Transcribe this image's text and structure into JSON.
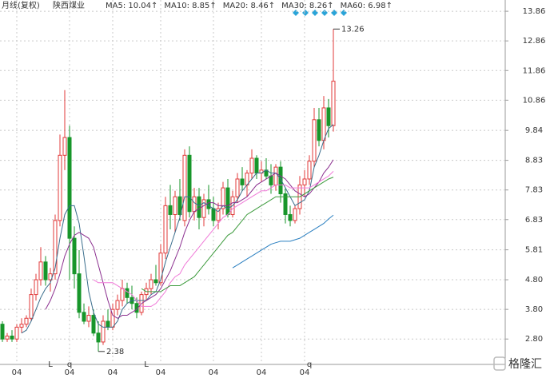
{
  "chart_data": {
    "type": "candlestick",
    "title": "月线(复权)",
    "subtitle": "陕西煤业",
    "watermark": "格隆汇",
    "categories": [
      null,
      null,
      null,
      "04",
      null,
      null,
      null,
      null,
      null,
      null,
      null,
      null,
      null,
      null,
      "04",
      null,
      null,
      null,
      null,
      null,
      null,
      null,
      null,
      "04",
      null,
      null,
      null,
      null,
      null,
      null,
      null,
      null,
      null,
      "04",
      null,
      null,
      null,
      null,
      null,
      null,
      null,
      null,
      null,
      null,
      "04",
      null,
      null,
      null,
      null,
      null,
      null,
      null,
      null,
      null,
      "04",
      null,
      null,
      null,
      null,
      null,
      null,
      null,
      null,
      "04",
      null,
      null,
      null,
      null,
      null,
      null
    ],
    "event_labels": [
      null,
      null,
      null,
      null,
      null,
      null,
      null,
      null,
      null,
      null,
      "L",
      null,
      null,
      null,
      "q",
      null,
      null,
      null,
      null,
      null,
      null,
      null,
      null,
      null,
      null,
      null,
      null,
      null,
      null,
      null,
      "L",
      null,
      null,
      null,
      null,
      null,
      null,
      null,
      null,
      null,
      null,
      null,
      null,
      null,
      null,
      null,
      null,
      null,
      null,
      null,
      null,
      null,
      null,
      null,
      null,
      null,
      null,
      null,
      null,
      null,
      null,
      null,
      null,
      null,
      "q",
      null,
      null,
      null,
      null,
      null
    ],
    "open": [
      3.3,
      2.8,
      2.9,
      2.8,
      3.2,
      3.3,
      3.5,
      4.3,
      4.8,
      5.4,
      4.8,
      5.0,
      6.8,
      9.0,
      9.6,
      6.2,
      5.0,
      3.7,
      3.4,
      3.6,
      3.0,
      2.7,
      3.4,
      3.2,
      3.8,
      4.1,
      4.5,
      4.2,
      4.0,
      3.7,
      4.3,
      4.5,
      4.8,
      4.7,
      5.7,
      7.3,
      7.0,
      7.6,
      6.8,
      9.0,
      7.1,
      7.6,
      6.9,
      7.5,
      7.2,
      6.8,
      7.2,
      7.9,
      7.0,
      7.6,
      8.2,
      8.0,
      8.4,
      8.9,
      8.4,
      8.5,
      8.3,
      8.0,
      8.6,
      7.7,
      7.0,
      6.8,
      7.2,
      8.0,
      8.2,
      8.8,
      10.2,
      9.5,
      10.6,
      10.0
    ],
    "high": [
      3.4,
      3.0,
      3.1,
      3.3,
      3.5,
      3.6,
      4.5,
      5.0,
      5.9,
      5.6,
      5.2,
      7.0,
      9.7,
      11.2,
      10.0,
      6.6,
      5.8,
      4.0,
      3.9,
      3.8,
      3.4,
      3.6,
      3.8,
      4.0,
      4.3,
      4.8,
      4.7,
      4.6,
      4.2,
      4.4,
      4.7,
      5.0,
      5.3,
      6.0,
      7.6,
      8.0,
      7.8,
      8.2,
      9.2,
      9.3,
      7.9,
      7.9,
      7.7,
      8.0,
      7.6,
      7.4,
      8.1,
      8.2,
      7.8,
      8.4,
      8.6,
      8.5,
      9.2,
      9.0,
      8.8,
      8.9,
      8.7,
      8.7,
      8.8,
      7.9,
      7.3,
      7.3,
      8.3,
      8.5,
      9.0,
      10.6,
      10.6,
      11.0,
      10.9,
      13.26
    ],
    "low": [
      2.7,
      2.7,
      2.7,
      2.7,
      3.0,
      3.2,
      3.4,
      4.1,
      4.6,
      4.6,
      4.4,
      4.8,
      6.6,
      8.5,
      4.8,
      4.5,
      3.5,
      3.3,
      3.2,
      2.9,
      2.38,
      2.6,
      3.1,
      3.1,
      3.6,
      3.9,
      4.0,
      3.8,
      3.5,
      3.6,
      4.1,
      4.3,
      4.6,
      4.6,
      5.5,
      6.5,
      6.4,
      6.8,
      6.6,
      6.9,
      6.8,
      6.5,
      6.6,
      7.0,
      6.6,
      6.5,
      7.0,
      6.9,
      6.9,
      7.4,
      7.8,
      7.6,
      8.2,
      8.2,
      8.1,
      8.2,
      7.7,
      7.8,
      7.4,
      6.7,
      6.6,
      6.7,
      7.0,
      7.6,
      8.0,
      8.6,
      9.3,
      9.2,
      9.6,
      9.8
    ],
    "close": [
      2.8,
      2.9,
      2.8,
      3.2,
      3.3,
      3.5,
      4.3,
      4.8,
      5.4,
      4.8,
      5.0,
      6.8,
      9.0,
      9.6,
      6.2,
      5.0,
      3.7,
      3.4,
      3.6,
      3.0,
      2.7,
      3.4,
      3.2,
      3.8,
      4.1,
      4.5,
      4.2,
      4.0,
      3.7,
      4.3,
      4.5,
      4.8,
      4.7,
      5.7,
      7.3,
      7.0,
      7.6,
      7.0,
      9.0,
      7.1,
      7.6,
      6.9,
      7.5,
      7.2,
      6.8,
      7.2,
      7.9,
      7.0,
      7.6,
      8.2,
      8.0,
      8.4,
      8.9,
      8.4,
      8.5,
      8.3,
      8.0,
      8.6,
      7.7,
      7.0,
      6.8,
      7.2,
      8.0,
      8.2,
      8.8,
      10.2,
      9.5,
      10.6,
      10.0,
      11.5
    ],
    "up_color": "#e23a3a",
    "down_color": "#17962a",
    "high_annotation": 13.26,
    "low_annotation": 2.38,
    "series": [
      {
        "name": "MA5",
        "legend_label": "MA5: 10.04↑",
        "color": "#3a6d8c",
        "values": [
          null,
          null,
          null,
          null,
          3.0,
          3.1,
          3.4,
          3.8,
          4.2,
          4.5,
          4.7,
          5.2,
          6.2,
          7.0,
          7.3,
          7.3,
          6.7,
          5.6,
          4.4,
          3.7,
          3.3,
          3.2,
          3.2,
          3.2,
          3.4,
          3.8,
          4.0,
          4.1,
          4.1,
          4.1,
          4.1,
          4.3,
          4.4,
          4.8,
          5.4,
          5.9,
          6.4,
          6.9,
          7.6,
          7.6,
          7.4,
          7.3,
          7.4,
          7.3,
          7.2,
          7.1,
          7.3,
          7.2,
          7.3,
          7.5,
          7.8,
          8.0,
          8.2,
          8.4,
          8.4,
          8.5,
          8.4,
          8.4,
          8.2,
          7.9,
          7.6,
          7.3,
          7.4,
          7.5,
          7.8,
          8.6,
          9.0,
          9.5,
          9.9,
          10.04
        ]
      },
      {
        "name": "MA10",
        "legend_label": "MA10: 8.85↑",
        "color": "#8b2f8f",
        "values": [
          null,
          null,
          null,
          null,
          null,
          null,
          null,
          null,
          null,
          3.8,
          4.1,
          4.5,
          5.0,
          5.6,
          6.0,
          6.3,
          6.4,
          6.3,
          6.2,
          5.9,
          5.3,
          4.7,
          4.1,
          3.6,
          3.5,
          3.6,
          3.6,
          3.7,
          3.8,
          4.0,
          4.1,
          4.2,
          4.3,
          4.5,
          4.8,
          5.1,
          5.5,
          5.9,
          6.4,
          6.8,
          7.1,
          7.2,
          7.3,
          7.4,
          7.4,
          7.3,
          7.3,
          7.3,
          7.4,
          7.4,
          7.5,
          7.6,
          7.8,
          8.0,
          8.1,
          8.2,
          8.3,
          8.4,
          8.3,
          8.2,
          8.0,
          7.8,
          7.7,
          7.6,
          7.7,
          7.9,
          8.1,
          8.4,
          8.6,
          8.85
        ]
      },
      {
        "name": "MA20",
        "legend_label": "MA20: 8.46↑",
        "color": "#f07ad8",
        "values": [
          null,
          null,
          null,
          null,
          null,
          null,
          null,
          null,
          null,
          null,
          null,
          null,
          null,
          null,
          null,
          null,
          null,
          null,
          null,
          4.8,
          4.7,
          4.7,
          4.7,
          4.7,
          4.6,
          4.5,
          4.4,
          4.3,
          4.1,
          3.9,
          3.9,
          3.9,
          4.0,
          4.2,
          4.4,
          4.7,
          4.9,
          5.0,
          5.3,
          5.5,
          5.7,
          5.9,
          6.1,
          6.3,
          6.5,
          6.7,
          6.9,
          7.0,
          7.2,
          7.3,
          7.4,
          7.5,
          7.6,
          7.7,
          7.8,
          7.8,
          7.9,
          8.0,
          8.0,
          8.0,
          7.9,
          7.9,
          7.9,
          7.9,
          7.9,
          8.0,
          8.1,
          8.2,
          8.3,
          8.46
        ]
      },
      {
        "name": "MA30",
        "legend_label": "MA30: 8.26↑",
        "color": "#3c9a3c",
        "values": [
          null,
          null,
          null,
          null,
          null,
          null,
          null,
          null,
          null,
          null,
          null,
          null,
          null,
          null,
          null,
          null,
          null,
          null,
          null,
          null,
          null,
          null,
          null,
          null,
          null,
          null,
          null,
          null,
          null,
          4.5,
          4.4,
          4.4,
          4.4,
          4.4,
          4.5,
          4.6,
          4.6,
          4.6,
          4.7,
          4.8,
          4.9,
          5.1,
          5.3,
          5.5,
          5.7,
          5.9,
          6.1,
          6.3,
          6.4,
          6.6,
          6.8,
          7.0,
          7.1,
          7.2,
          7.3,
          7.4,
          7.5,
          7.6,
          7.6,
          7.6,
          7.6,
          7.6,
          7.6,
          7.7,
          7.8,
          7.9,
          8.0,
          8.1,
          8.2,
          8.26
        ]
      },
      {
        "name": "MA60",
        "legend_label": "MA60: 6.98↑",
        "color": "#2a7fc0",
        "values": [
          null,
          null,
          null,
          null,
          null,
          null,
          null,
          null,
          null,
          null,
          null,
          null,
          null,
          null,
          null,
          null,
          null,
          null,
          null,
          null,
          null,
          null,
          null,
          null,
          null,
          null,
          null,
          null,
          null,
          null,
          null,
          null,
          null,
          null,
          null,
          null,
          null,
          null,
          null,
          null,
          null,
          null,
          null,
          null,
          null,
          null,
          null,
          null,
          5.2,
          5.3,
          5.4,
          5.5,
          5.6,
          5.7,
          5.8,
          5.9,
          6.0,
          6.05,
          6.1,
          6.1,
          6.1,
          6.15,
          6.2,
          6.3,
          6.4,
          6.5,
          6.6,
          6.7,
          6.85,
          6.98
        ]
      }
    ],
    "ylim": [
      1.97,
      14.24
    ],
    "yticks": [
      13.86,
      12.86,
      11.86,
      10.86,
      9.84,
      8.83,
      7.83,
      6.83,
      5.81,
      {
        "value": 4.8,
        "label": "4.80"
      },
      {
        "value": 3.8,
        "label": "3.80"
      },
      {
        "value": 2.8,
        "label": "2.80"
      }
    ],
    "grid": true
  }
}
